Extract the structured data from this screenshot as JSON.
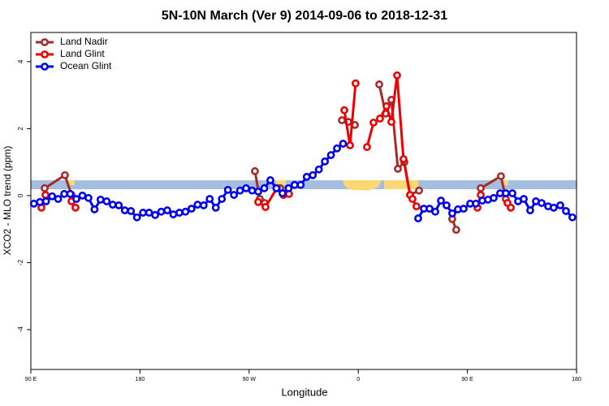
{
  "chart_data": {
    "type": "line",
    "title": "5N-10N March (Ver 9)   2014-09-06 to 2018-12-31",
    "x_label": "Longitude",
    "y_label": "XCO2 - MLO trend (ppm)",
    "xlim": [
      90,
      540
    ],
    "ylim": [
      -5.19,
      4.87
    ],
    "xticks": [
      {
        "value": 90,
        "label": "90 E"
      },
      {
        "value": 180,
        "label": "180"
      },
      {
        "value": 270,
        "label": "90 W"
      },
      {
        "value": 360,
        "label": "0"
      },
      {
        "value": 450,
        "label": "90 E"
      },
      {
        "value": 540,
        "label": "180"
      }
    ],
    "yticks": [
      -4,
      -2,
      0,
      2,
      4
    ],
    "legend": "top-left",
    "series": [
      {
        "name": "Land Nadir",
        "color": "#a52a2a",
        "x": [
          101.4,
          118.1,
          123.5,
          200,
          274.8,
          278.8,
          282.8,
          290,
          295.6,
          340,
          346.5,
          351.8,
          357.2,
          362,
          377.3,
          382.6,
          387.3,
          392.7,
          398.0,
          402.7,
          410.1,
          430,
          437.5,
          440.8,
          450,
          461.0,
          477.7,
          481.7
        ],
        "values": [
          0.22,
          0.61,
          0.02,
          null,
          0.73,
          -0.1,
          -0.22,
          null,
          0.22,
          null,
          2.25,
          2.2,
          2.11,
          null,
          3.32,
          2.45,
          2.86,
          0.8,
          1.0,
          0.02,
          0.15,
          null,
          -0.7,
          -1.02,
          null,
          0.22,
          0.58,
          -0.1
        ]
      },
      {
        "name": "Land Glint",
        "color": "#ee0000",
        "x": [
          98.7,
          102.1,
          110,
          123.5,
          126.8,
          200,
          277.5,
          283.5,
          292.9,
          298.3,
          302.9,
          325,
          348.5,
          353.2,
          357.8,
          362,
          367.2,
          372.6,
          377.9,
          383.3,
          387.3,
          392.0,
          397.3,
          402.7,
          404.7,
          408.0,
          430,
          458.3,
          461.0,
          470,
          483.1,
          485.8
        ],
        "values": [
          -0.36,
          0.02,
          null,
          -0.17,
          -0.36,
          null,
          -0.19,
          -0.34,
          0.22,
          0.02,
          0.05,
          null,
          2.55,
          1.5,
          3.35,
          null,
          1.45,
          2.18,
          2.3,
          2.67,
          2.2,
          3.59,
          1.09,
          0.02,
          -0.1,
          -0.32,
          null,
          -0.36,
          0.02,
          null,
          -0.22,
          -0.36
        ]
      },
      {
        "name": "Ocean Glint",
        "color": "#0000ee",
        "x": [
          92.5,
          97.5,
          102.5,
          107.5,
          112.5,
          117.5,
          122.5,
          127.5,
          132.5,
          137.5,
          142.5,
          147.5,
          152.5,
          157.5,
          162.5,
          167.5,
          172.5,
          177.5,
          182.5,
          187.5,
          192.5,
          197.5,
          202.5,
          207.5,
          212.5,
          217.5,
          222.5,
          227.5,
          232.5,
          237.5,
          242.5,
          247.5,
          252.5,
          257.5,
          262.5,
          267.5,
          272.5,
          277.5,
          282.5,
          287.5,
          292.5,
          297.5,
          302.5,
          307.5,
          312.5,
          317.5,
          322.5,
          327.5,
          332.5,
          337.5,
          342.5,
          347.5,
          380,
          409.4,
          414.1,
          418.8,
          423.5,
          428.2,
          432.8,
          437.5,
          442.2,
          446.9,
          452.3,
          457.0,
          462.3,
          467.0,
          471.7,
          477.0,
          481.7,
          487.1,
          491.8,
          496.5,
          501.8,
          506.5,
          511.2,
          516.6,
          521.2,
          526.6,
          531.3,
          536.6
        ],
        "values": [
          -0.24,
          -0.19,
          -0.17,
          -0.02,
          -0.1,
          0.05,
          0.05,
          -0.1,
          0,
          -0.07,
          -0.41,
          -0.12,
          -0.17,
          -0.27,
          -0.29,
          -0.44,
          -0.46,
          -0.65,
          -0.51,
          -0.51,
          -0.58,
          -0.48,
          -0.44,
          -0.56,
          -0.51,
          -0.48,
          -0.39,
          -0.27,
          -0.29,
          -0.1,
          -0.36,
          -0.1,
          0.17,
          0.02,
          0.15,
          0.22,
          0.15,
          0.12,
          0.22,
          0.46,
          0.22,
          0.07,
          0.22,
          0.32,
          0.32,
          0.56,
          0.61,
          0.78,
          1.02,
          1.21,
          1.41,
          1.55,
          null,
          -0.68,
          -0.39,
          -0.39,
          -0.48,
          -0.15,
          -0.29,
          -0.53,
          -0.41,
          -0.39,
          -0.24,
          -0.24,
          -0.15,
          -0.12,
          -0.07,
          0.07,
          0.07,
          0.07,
          -0.17,
          -0.1,
          -0.44,
          -0.17,
          -0.22,
          -0.32,
          -0.36,
          -0.29,
          -0.46,
          -0.65
        ]
      }
    ]
  }
}
